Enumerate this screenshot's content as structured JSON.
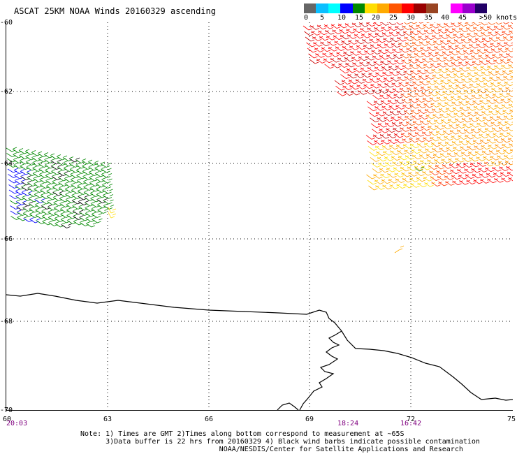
{
  "title": "ASCAT 25KM NOAA Winds 20160329 ascending",
  "colorbar": {
    "colors": [
      "#666666",
      "#0bbfff",
      "#00ffff",
      "#0000ff",
      "#008800",
      "#ffdd00",
      "#ffaa00",
      "#ff5500",
      "#ff0000",
      "#990000",
      "#994422",
      "#ffffff",
      "#ff00ff",
      "#9900cc",
      "#220066"
    ],
    "labels": [
      "0",
      "5",
      "10",
      "15",
      "20",
      "25",
      "30",
      "35",
      "40",
      "45",
      ">50 knots"
    ]
  },
  "axes": {
    "lat_labels": [
      "-60",
      "-62",
      "-64",
      "-66",
      "-68",
      "-70"
    ],
    "lon_labels": [
      "60",
      "63",
      "66",
      "69",
      "72",
      "75"
    ]
  },
  "time_labels": [
    "20:03",
    "18:24",
    "16:42"
  ],
  "notes": [
    "Note: 1) Times are GMT 2)Times along bottom correspond to measurement at ~65S",
    "      3)Data buffer is 22 hrs from 20160329 4) Black wind barbs indicate possible contamination",
    "                                 NOAA/NESDIS/Center for Satellite Applications and Research"
  ]
}
